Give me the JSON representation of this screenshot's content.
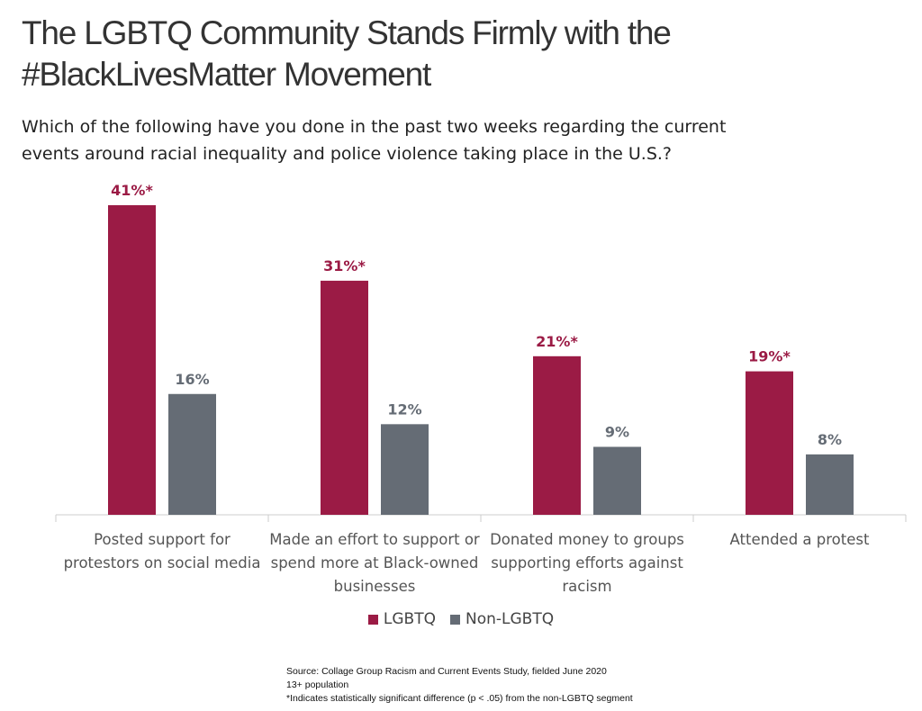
{
  "chart_data": {
    "type": "bar",
    "title": "The LGBTQ Community Stands Firmly with the #BlackLivesMatter Movement",
    "subtitle": "Which of the following have you done in the past two weeks regarding the current events around racial inequality and police violence taking place in the U.S.?",
    "categories": [
      "Posted support for protestors on social media",
      "Made an effort to support or spend more at Black-owned businesses",
      "Donated money to groups supporting efforts against racism",
      "Attended a protest"
    ],
    "series": [
      {
        "name": "LGBTQ",
        "color": "#9b1b45",
        "values": [
          41,
          31,
          21,
          19
        ],
        "value_labels": [
          "41%*",
          "31%*",
          "21%*",
          "19%*"
        ]
      },
      {
        "name": "Non-LGBTQ",
        "color": "#656c75",
        "values": [
          16,
          12,
          9,
          8
        ],
        "value_labels": [
          "16%",
          "12%",
          "9%",
          "8%"
        ]
      }
    ],
    "legend": "bottom",
    "notes": [
      "Source: Collage Group Racism and Current Events Study, fielded June 2020",
      "13+ population",
      "*Indicates statistically significant difference (p < .05) from the non-LGBTQ segment"
    ]
  }
}
